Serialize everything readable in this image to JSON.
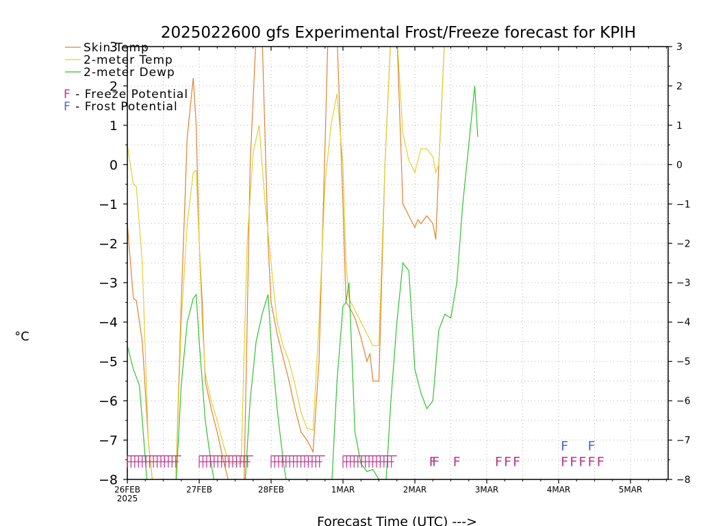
{
  "chart_data": {
    "type": "line",
    "title": "2025022600 gfs Experimental Frost/Freeze forecast for KPIH",
    "ylabel": "°C",
    "xlabel": "Forecast Time (UTC) --->",
    "ylim": [
      -8,
      3
    ],
    "yticks": [
      -8,
      -7,
      -6,
      -5,
      -4,
      -3,
      -2,
      -1,
      0,
      1,
      2,
      3
    ],
    "x_unit": "hours since 26FEB 00Z",
    "xlim": [
      0,
      108
    ],
    "xticks": [
      {
        "x": 0,
        "label": "26FEB",
        "sublabel": "2025"
      },
      {
        "x": 12,
        "label": "27FEB",
        "sublabel": ""
      },
      {
        "x": 24,
        "label": "28FEB",
        "sublabel": ""
      },
      {
        "x": 36,
        "label": "1MAR",
        "sublabel": ""
      },
      {
        "x": 48,
        "label": "2MAR",
        "sublabel": ""
      },
      {
        "x": 60,
        "label": "3MAR",
        "sublabel": ""
      },
      {
        "x": 72,
        "label": "4MAR",
        "sublabel": ""
      },
      {
        "x": 84,
        "label": "5MAR",
        "sublabel": ""
      }
    ],
    "grid": true,
    "legend": {
      "placement": "top-left",
      "items": [
        {
          "label": "Skin Temp",
          "color": "#e08030"
        },
        {
          "label": "2-meter Temp",
          "color": "#e0d030"
        },
        {
          "label": "2-meter Dewp",
          "color": "#30c030"
        }
      ],
      "markers": [
        {
          "label": "F - Freeze Potential",
          "color": "#c0308c"
        },
        {
          "label": "F - Frost Potential",
          "color": "#5060d0"
        }
      ]
    },
    "series": [
      {
        "name": "Skin Temp",
        "color": "#e08030",
        "points": [
          [
            0,
            -1.5
          ],
          [
            1,
            -3.4
          ],
          [
            1.5,
            -3.45
          ],
          [
            2.5,
            -4.5
          ],
          [
            3.5,
            -7.0
          ],
          [
            4.5,
            -8.5
          ],
          [
            8,
            -8.5
          ],
          [
            9,
            -3.5
          ],
          [
            10,
            0.7
          ],
          [
            11,
            2.2
          ],
          [
            11.5,
            1.0
          ],
          [
            12,
            -2.0
          ],
          [
            12.5,
            -3.5
          ],
          [
            13,
            -5.5
          ],
          [
            14,
            -6.2
          ],
          [
            15,
            -6.8
          ],
          [
            16,
            -7.5
          ],
          [
            17,
            -8.1
          ],
          [
            19.5,
            -8.1
          ],
          [
            20.5,
            0.0
          ],
          [
            21.5,
            3.3
          ],
          [
            22.5,
            3.3
          ],
          [
            23.5,
            -2.0
          ],
          [
            24,
            -3.5
          ],
          [
            25,
            -4.3
          ],
          [
            26,
            -4.9
          ],
          [
            27,
            -5.5
          ],
          [
            28,
            -6.2
          ],
          [
            29,
            -6.8
          ],
          [
            30,
            -7.0
          ],
          [
            31,
            -7.3
          ],
          [
            32,
            -5.0
          ],
          [
            33,
            0.5
          ],
          [
            33.5,
            3.3
          ],
          [
            35,
            3.3
          ],
          [
            36,
            -1.0
          ],
          [
            36.5,
            -3.5
          ],
          [
            37,
            -3.6
          ],
          [
            38,
            -3.9
          ],
          [
            39,
            -4.4
          ],
          [
            40,
            -5.0
          ],
          [
            40.5,
            -4.8
          ],
          [
            41,
            -5.5
          ],
          [
            42,
            -5.5
          ],
          [
            43,
            0.0
          ],
          [
            44,
            3.3
          ],
          [
            45,
            3.3
          ],
          [
            46,
            -1.0
          ],
          [
            47,
            -1.3
          ],
          [
            48,
            -1.6
          ],
          [
            48.5,
            -1.4
          ],
          [
            49,
            -1.5
          ],
          [
            50,
            -1.3
          ],
          [
            51,
            -1.5
          ],
          [
            51.5,
            -1.9
          ],
          [
            52,
            0.0
          ],
          [
            53,
            3.3
          ]
        ]
      },
      {
        "name": "2-meter Temp",
        "color": "#e0d030",
        "points": [
          [
            0,
            0.5
          ],
          [
            1,
            -0.5
          ],
          [
            1.5,
            -0.55
          ],
          [
            2.5,
            -2.5
          ],
          [
            3.5,
            -7.0
          ],
          [
            4.5,
            -8.5
          ],
          [
            8,
            -8.5
          ],
          [
            9,
            -4.0
          ],
          [
            10,
            -1.5
          ],
          [
            11,
            -0.2
          ],
          [
            11.5,
            -0.15
          ],
          [
            12,
            -2.0
          ],
          [
            12.5,
            -4.0
          ],
          [
            13,
            -5.3
          ],
          [
            14,
            -6.0
          ],
          [
            15,
            -6.5
          ],
          [
            16,
            -7.1
          ],
          [
            17,
            -7.6
          ],
          [
            19,
            -7.6
          ],
          [
            20,
            -2.0
          ],
          [
            21,
            0.3
          ],
          [
            22,
            1.0
          ],
          [
            23,
            -1.0
          ],
          [
            24,
            -2.5
          ],
          [
            25,
            -4.0
          ],
          [
            26,
            -4.6
          ],
          [
            27,
            -5.0
          ],
          [
            28,
            -5.6
          ],
          [
            29,
            -6.3
          ],
          [
            30,
            -6.7
          ],
          [
            31,
            -6.75
          ],
          [
            32,
            -4.0
          ],
          [
            33,
            -0.5
          ],
          [
            34,
            1.0
          ],
          [
            35,
            1.8
          ],
          [
            36,
            0.0
          ],
          [
            36.5,
            -2.5
          ],
          [
            37,
            -3.4
          ],
          [
            38,
            -3.7
          ],
          [
            39,
            -4.0
          ],
          [
            40,
            -4.3
          ],
          [
            41,
            -4.6
          ],
          [
            42,
            -4.6
          ],
          [
            43,
            0.0
          ],
          [
            44,
            3.3
          ],
          [
            45,
            3.3
          ],
          [
            46,
            0.8
          ],
          [
            47,
            0.1
          ],
          [
            48,
            -0.2
          ],
          [
            49,
            0.4
          ],
          [
            50,
            0.4
          ],
          [
            51,
            0.2
          ],
          [
            51.5,
            -0.2
          ],
          [
            52,
            0.0
          ],
          [
            53,
            3.3
          ]
        ]
      },
      {
        "name": "2-meter Dewp",
        "color": "#30c030",
        "points": [
          [
            0,
            -4.6
          ],
          [
            1,
            -5.2
          ],
          [
            2,
            -5.6
          ],
          [
            2.5,
            -6.5
          ],
          [
            3.5,
            -8.5
          ],
          [
            8,
            -8.5
          ],
          [
            9,
            -5.6
          ],
          [
            10,
            -4.0
          ],
          [
            11,
            -3.4
          ],
          [
            11.5,
            -3.3
          ],
          [
            12,
            -4.5
          ],
          [
            13,
            -6.5
          ],
          [
            14,
            -7.6
          ],
          [
            15,
            -8.5
          ],
          [
            19.5,
            -8.5
          ],
          [
            20.5,
            -6.0
          ],
          [
            21.5,
            -4.5
          ],
          [
            22.5,
            -3.8
          ],
          [
            23.5,
            -3.3
          ],
          [
            24,
            -4.5
          ],
          [
            25,
            -6.2
          ],
          [
            26,
            -7.5
          ],
          [
            27,
            -8.5
          ],
          [
            34,
            -8.5
          ],
          [
            35,
            -5.5
          ],
          [
            36,
            -3.6
          ],
          [
            36.5,
            -3.5
          ],
          [
            37,
            -3.0
          ],
          [
            38,
            -6.8
          ],
          [
            39,
            -7.6
          ],
          [
            40,
            -7.8
          ],
          [
            41,
            -7.75
          ],
          [
            42,
            -8.0
          ],
          [
            43,
            -8.5
          ],
          [
            44,
            -6.0
          ],
          [
            45,
            -4.0
          ],
          [
            46,
            -2.5
          ],
          [
            47,
            -2.7
          ],
          [
            48,
            -5.2
          ],
          [
            49,
            -5.8
          ],
          [
            50,
            -6.2
          ],
          [
            51,
            -6.0
          ],
          [
            52,
            -4.2
          ],
          [
            53,
            -3.8
          ],
          [
            54,
            -3.9
          ],
          [
            55,
            -3.0
          ],
          [
            56,
            -1.0
          ],
          [
            58,
            2.0
          ],
          [
            58.5,
            0.7
          ]
        ]
      }
    ],
    "freeze_rows": [
      {
        "x_start": 0,
        "x_end": 9,
        "count": 14
      },
      {
        "x_start": 12,
        "x_end": 21,
        "count": 14
      },
      {
        "x_start": 24,
        "x_end": 33,
        "count": 14
      },
      {
        "x_start": 36,
        "x_end": 45,
        "count": 14
      }
    ],
    "freeze_markers": [
      {
        "x": 51,
        "y": -7.5
      },
      {
        "x": 51.5,
        "y": -7.5
      },
      {
        "x": 55,
        "y": -7.5
      },
      {
        "x": 62,
        "y": -7.5
      },
      {
        "x": 63.5,
        "y": -7.5
      },
      {
        "x": 65,
        "y": -7.5
      },
      {
        "x": 73,
        "y": -7.5
      },
      {
        "x": 74.5,
        "y": -7.5
      },
      {
        "x": 76,
        "y": -7.5
      },
      {
        "x": 77.5,
        "y": -7.5
      },
      {
        "x": 79,
        "y": -7.5
      }
    ],
    "frost_markers": [
      {
        "x": 73,
        "y": -7.1
      },
      {
        "x": 77.5,
        "y": -7.1
      }
    ]
  }
}
